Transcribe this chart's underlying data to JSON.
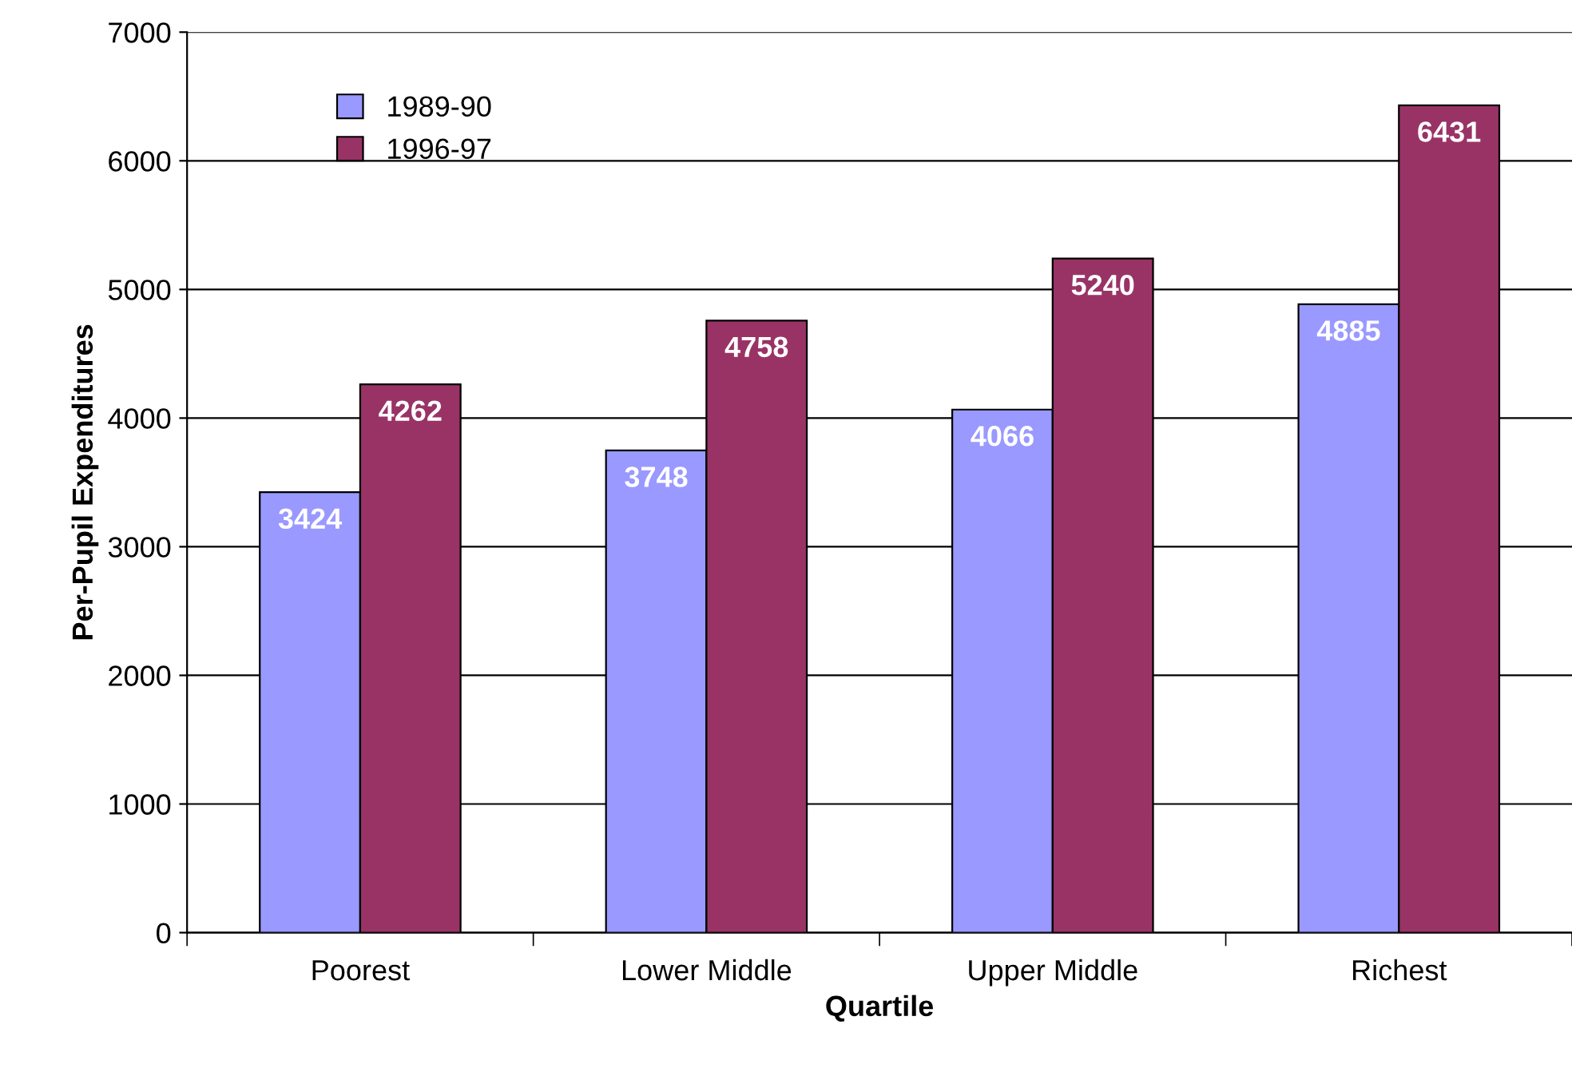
{
  "chart_data": {
    "type": "bar",
    "xlabel": "Quartile",
    "ylabel": "Per-Pupil Expenditures",
    "categories": [
      "Poorest",
      "Lower Middle",
      "Upper Middle",
      "Richest"
    ],
    "series": [
      {
        "name": "1989-90",
        "color": "#9999ff",
        "values": [
          3424,
          3748,
          4066,
          4885
        ]
      },
      {
        "name": "1996-97",
        "color": "#993366",
        "values": [
          4262,
          4758,
          5240,
          6431
        ]
      }
    ],
    "ylim": [
      0,
      7000
    ],
    "yticks": [
      0,
      1000,
      2000,
      3000,
      4000,
      5000,
      6000,
      7000
    ],
    "grid": "y",
    "legend": "top left",
    "data_labels": true
  }
}
